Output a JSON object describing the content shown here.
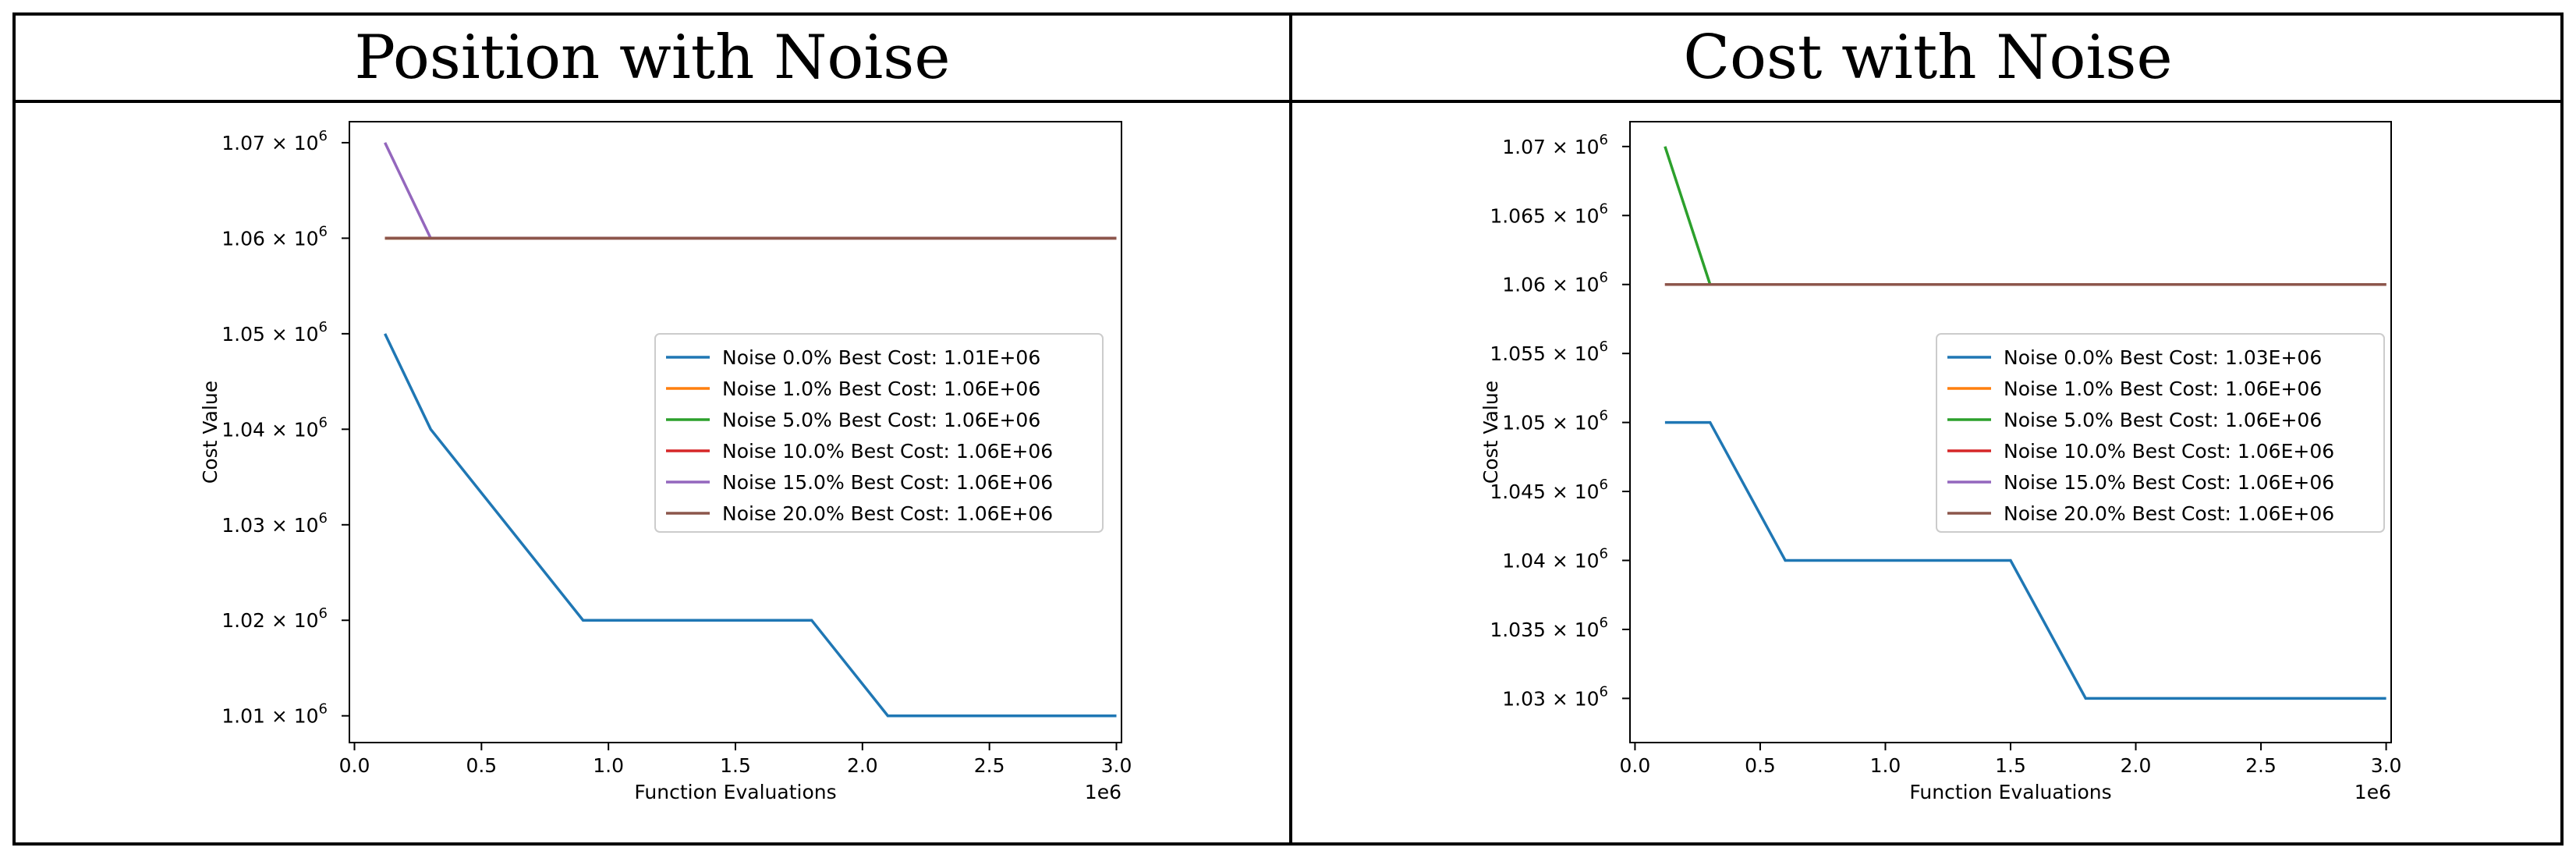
{
  "panels": {
    "left_title": "Position with Noise",
    "right_title": "Cost with Noise"
  },
  "colors": {
    "c0": "#1f77b4",
    "c1": "#ff7f0e",
    "c2": "#2ca02c",
    "c3": "#d62728",
    "c4": "#9467bd",
    "c5": "#8c564b"
  },
  "chart_data": [
    {
      "type": "line",
      "title": "Position with Noise",
      "xlabel": "Function Evaluations",
      "ylabel": "Cost Value",
      "x_multiplier_label": "1e6",
      "xlim": [
        -0.02,
        3.02
      ],
      "ylim": [
        1.0072,
        1.0722
      ],
      "xticks": [
        0.0,
        0.5,
        1.0,
        1.5,
        2.0,
        2.5,
        3.0
      ],
      "xtick_labels": [
        "0.0",
        "0.5",
        "1.0",
        "1.5",
        "2.0",
        "2.5",
        "3.0"
      ],
      "yticks": [
        1.01,
        1.02,
        1.03,
        1.04,
        1.05,
        1.06,
        1.07
      ],
      "ytick_labels": [
        "1.01 × 10",
        "1.02 × 10",
        "1.03 × 10",
        "1.04 × 10",
        "1.05 × 10",
        "1.06 × 10",
        "1.07 × 10"
      ],
      "ytick_exponent": "6",
      "legend_position": "center-right",
      "series": [
        {
          "name": "Noise  0.0% Best Cost: 1.01E+06",
          "color": "#1f77b4",
          "x": [
            0.12,
            0.3,
            0.9,
            1.8,
            2.1,
            3.0
          ],
          "y": [
            1.05,
            1.04,
            1.02,
            1.02,
            1.01,
            1.01
          ]
        },
        {
          "name": "Noise  1.0% Best Cost: 1.06E+06",
          "color": "#ff7f0e",
          "x": [
            0.12,
            3.0
          ],
          "y": [
            1.06,
            1.06
          ]
        },
        {
          "name": "Noise  5.0% Best Cost: 1.06E+06",
          "color": "#2ca02c",
          "x": [
            0.12,
            3.0
          ],
          "y": [
            1.06,
            1.06
          ]
        },
        {
          "name": "Noise  10.0% Best Cost: 1.06E+06",
          "color": "#d62728",
          "x": [
            0.12,
            3.0
          ],
          "y": [
            1.06,
            1.06
          ]
        },
        {
          "name": "Noise  15.0% Best Cost: 1.06E+06",
          "color": "#9467bd",
          "x": [
            0.12,
            0.3,
            3.0
          ],
          "y": [
            1.07,
            1.06,
            1.06
          ]
        },
        {
          "name": "Noise  20.0% Best Cost: 1.06E+06",
          "color": "#8c564b",
          "x": [
            0.12,
            3.0
          ],
          "y": [
            1.06,
            1.06
          ]
        }
      ]
    },
    {
      "type": "line",
      "title": "Cost with Noise",
      "xlabel": "Function Evaluations",
      "ylabel": "Cost Value",
      "x_multiplier_label": "1e6",
      "xlim": [
        -0.02,
        3.02
      ],
      "ylim": [
        1.0268,
        1.0718
      ],
      "xticks": [
        0.0,
        0.5,
        1.0,
        1.5,
        2.0,
        2.5,
        3.0
      ],
      "xtick_labels": [
        "0.0",
        "0.5",
        "1.0",
        "1.5",
        "2.0",
        "2.5",
        "3.0"
      ],
      "yticks": [
        1.03,
        1.035,
        1.04,
        1.045,
        1.05,
        1.055,
        1.06,
        1.065,
        1.07
      ],
      "ytick_labels": [
        "1.03 × 10",
        "1.035 × 10",
        "1.04 × 10",
        "1.045 × 10",
        "1.05 × 10",
        "1.055 × 10",
        "1.06 × 10",
        "1.065 × 10",
        "1.07 × 10"
      ],
      "ytick_exponent": "6",
      "legend_position": "center-right",
      "series": [
        {
          "name": "Noise  0.0% Best Cost: 1.03E+06",
          "color": "#1f77b4",
          "x": [
            0.12,
            0.3,
            0.6,
            1.5,
            1.8,
            3.0
          ],
          "y": [
            1.05,
            1.05,
            1.04,
            1.04,
            1.03,
            1.03
          ]
        },
        {
          "name": "Noise  1.0% Best Cost: 1.06E+06",
          "color": "#ff7f0e",
          "x": [
            0.12,
            3.0
          ],
          "y": [
            1.06,
            1.06
          ]
        },
        {
          "name": "Noise  5.0% Best Cost: 1.06E+06",
          "color": "#2ca02c",
          "x": [
            0.12,
            0.3,
            3.0
          ],
          "y": [
            1.07,
            1.06,
            1.06
          ]
        },
        {
          "name": "Noise  10.0% Best Cost: 1.06E+06",
          "color": "#d62728",
          "x": [
            0.12,
            3.0
          ],
          "y": [
            1.06,
            1.06
          ]
        },
        {
          "name": "Noise  15.0% Best Cost: 1.06E+06",
          "color": "#9467bd",
          "x": [
            0.12,
            3.0
          ],
          "y": [
            1.06,
            1.06
          ]
        },
        {
          "name": "Noise  20.0% Best Cost: 1.06E+06",
          "color": "#8c564b",
          "x": [
            0.12,
            3.0
          ],
          "y": [
            1.06,
            1.06
          ]
        }
      ]
    }
  ]
}
